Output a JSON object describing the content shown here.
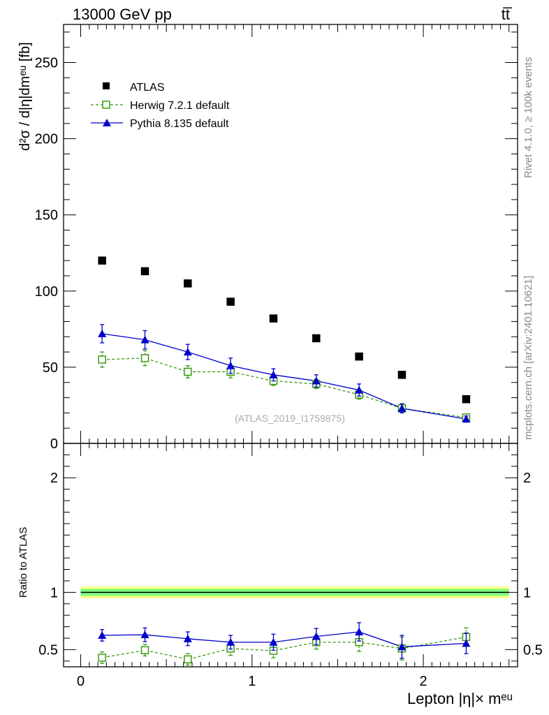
{
  "header": {
    "energy_label": "13000 GeV pp",
    "process_label": "tt̅"
  },
  "side_text": {
    "rivet": "Rivet 4.1.0, ≥ 100k events",
    "mcplots": "mcplots.cern.ch [arXiv:2401.10621]"
  },
  "watermark": "(ATLAS_2019_I1759875)",
  "colors": {
    "atlas": "#000000",
    "herwig": "#3a9a10",
    "pythia": "#0000cc",
    "band_outer": "#ffff7f",
    "band_inner": "#7fff7f"
  },
  "chart_data": [
    {
      "type": "scatter",
      "title": "",
      "xlabel": "Lepton |η|× mᵉᵘ",
      "ylabel": "d²σ / d|η|dmᵉᵘ [fb]",
      "xlim": [
        -0.1,
        2.55
      ],
      "ylim": [
        0,
        275
      ],
      "x_ticks": [
        0,
        1,
        2
      ],
      "x_tick_labels": [
        "0",
        "1",
        "2"
      ],
      "y_ticks": [
        0,
        50,
        100,
        150,
        200,
        250
      ],
      "y_tick_labels": [
        "0",
        "50",
        "100",
        "150",
        "200",
        "250"
      ],
      "x": [
        0.125,
        0.375,
        0.625,
        0.875,
        1.125,
        1.375,
        1.625,
        1.875,
        2.25
      ],
      "legend": [
        "ATLAS",
        "Herwig 7.2.1 default",
        "Pythia 8.135 default"
      ],
      "series": [
        {
          "name": "ATLAS",
          "values": [
            120,
            113,
            105,
            93,
            82,
            69,
            57,
            45,
            29
          ],
          "err": [
            0,
            0,
            0,
            0,
            0,
            0,
            0,
            0,
            0
          ]
        },
        {
          "name": "Herwig 7.2.1 default",
          "values": [
            55,
            56,
            47,
            47,
            41,
            39,
            32,
            23,
            17
          ],
          "err": [
            5,
            5,
            4,
            4,
            3,
            3,
            3,
            3,
            2
          ]
        },
        {
          "name": "Pythia 8.135 default",
          "values": [
            72,
            68,
            60,
            51,
            45,
            41,
            35,
            23,
            16
          ],
          "err": [
            6,
            6,
            5,
            5,
            4,
            4,
            4,
            3,
            2
          ]
        }
      ]
    },
    {
      "type": "line",
      "title": "",
      "xlabel": "Lepton |η|× mᵉᵘ",
      "ylabel": "Ratio to ATLAS",
      "xlim": [
        -0.1,
        2.55
      ],
      "ylim": [
        0.35,
        2.3
      ],
      "y_ticks": [
        0.5,
        1,
        2
      ],
      "y_tick_labels": [
        "0.5",
        "1",
        "2"
      ],
      "reference": 1,
      "band_outer": [
        0.95,
        1.05
      ],
      "band_inner": [
        0.97,
        1.03
      ],
      "x": [
        0.125,
        0.375,
        0.625,
        0.875,
        1.125,
        1.375,
        1.625,
        1.875,
        2.25
      ],
      "series": [
        {
          "name": "Herwig 7.2.1 default",
          "values": [
            0.43,
            0.495,
            0.415,
            0.51,
            0.49,
            0.565,
            0.565,
            0.51,
            0.61
          ],
          "err": [
            0.05,
            0.05,
            0.05,
            0.06,
            0.06,
            0.06,
            0.08,
            0.1,
            0.08
          ]
        },
        {
          "name": "Pythia 8.135 default",
          "values": [
            0.625,
            0.63,
            0.595,
            0.565,
            0.565,
            0.615,
            0.655,
            0.525,
            0.555
          ],
          "err": [
            0.05,
            0.06,
            0.06,
            0.06,
            0.07,
            0.07,
            0.08,
            0.1,
            0.09
          ]
        }
      ]
    }
  ]
}
